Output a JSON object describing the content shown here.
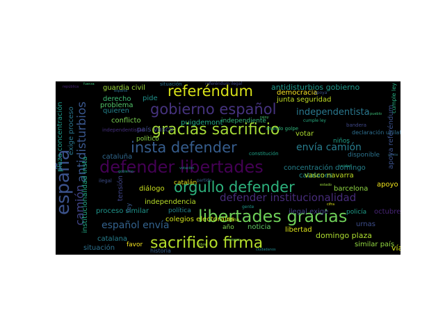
{
  "words": [
    {
      "text": "referéndum",
      "color": "#d8e219"
    },
    {
      "text": "gobierno español",
      "color": "#46337f"
    },
    {
      "text": "gracias sacrificio",
      "color": "#a5db36"
    },
    {
      "text": "insta defender",
      "color": "#365d8d"
    },
    {
      "text": "defender libertades",
      "color": "#440154"
    },
    {
      "text": "orgullo defender",
      "color": "#2db27d"
    },
    {
      "text": "libertades gracias",
      "color": "#6ece58"
    },
    {
      "text": "sacrificio firma",
      "color": "#b5de2b"
    },
    {
      "text": "españa",
      "color": "#3b528b"
    },
    {
      "text": "antidisturbios",
      "color": "#39568c"
    },
    {
      "text": "camión",
      "color": "#414487"
    },
    {
      "text": "defender institucionalidad",
      "color": "#472c7a"
    },
    {
      "text": "envía camión",
      "color": "#287d8e"
    },
    {
      "text": "español envía",
      "color": "#33628d"
    },
    {
      "text": "independentista",
      "color": "#2a788e"
    },
    {
      "text": "antidisturbios gobierno",
      "color": "#1f988b"
    },
    {
      "text": "democracia",
      "color": "#fde725"
    },
    {
      "text": "junta seguridad",
      "color": "#c2df23"
    },
    {
      "text": "guardia civil",
      "color": "#9fda3a"
    },
    {
      "text": "derecho",
      "color": "#3fbc73"
    },
    {
      "text": "quieren",
      "color": "#25848e"
    },
    {
      "text": "conflicto",
      "color": "#7ad151"
    },
    {
      "text": "problema",
      "color": "#52c569"
    },
    {
      "text": "puigdemont",
      "color": "#21a685"
    },
    {
      "text": "pide",
      "color": "#20928c"
    },
    {
      "text": "independiente",
      "color": "#32b67a"
    },
    {
      "text": "país vasco",
      "color": "#3e4a89"
    },
    {
      "text": "cataluña",
      "color": "#31688e"
    },
    {
      "text": "político",
      "color": "#8bd646"
    },
    {
      "text": "votar",
      "color": "#addc30"
    },
    {
      "text": "niños",
      "color": "#1fa088"
    },
    {
      "text": "concentración domingo",
      "color": "#26828e"
    },
    {
      "text": "catalanes",
      "color": "#218e8d"
    },
    {
      "text": "disponible",
      "color": "#2c738e"
    },
    {
      "text": "institucionalidad insta",
      "color": "#22a884"
    },
    {
      "text": "plaza concentración",
      "color": "#1e9b8a"
    },
    {
      "text": "exige proceso",
      "color": "#2a768e"
    },
    {
      "text": "colegios electorales",
      "color": "#d2e21b"
    },
    {
      "text": "catalán",
      "color": "#e5e419"
    },
    {
      "text": "diálogo",
      "color": "#cae11f"
    },
    {
      "text": "vasco navarra",
      "color": "#c0df25"
    },
    {
      "text": "apoyo",
      "color": "#f1e51d"
    },
    {
      "text": "barcelona",
      "color": "#90d743"
    },
    {
      "text": "independencia",
      "color": "#b8de29"
    },
    {
      "text": "proceso similar",
      "color": "#1f958b"
    },
    {
      "text": "política",
      "color": "#24868e"
    },
    {
      "text": "ilegal exige",
      "color": "#423f85"
    },
    {
      "text": "policía",
      "color": "#1e9c89"
    },
    {
      "text": "octubre",
      "color": "#482576"
    },
    {
      "text": "urnas",
      "color": "#3d4d8a"
    },
    {
      "text": "año",
      "color": "#7fd34e"
    },
    {
      "text": "noticia",
      "color": "#5ec962"
    },
    {
      "text": "libertad",
      "color": "#dde318"
    },
    {
      "text": "domingo plaza",
      "color": "#addc30"
    },
    {
      "text": "similar país",
      "color": "#93d741"
    },
    {
      "text": "favor",
      "color": "#f6e620"
    },
    {
      "text": "situación",
      "color": "#2d718e"
    },
    {
      "text": "vía",
      "color": "#d5e21a"
    },
    {
      "text": "apoya referéndum",
      "color": "#3b518b"
    },
    {
      "text": "tensión",
      "color": "#404588"
    },
    {
      "text": "ley",
      "color": "#38598c"
    },
    {
      "text": "española",
      "color": "#22a785"
    },
    {
      "text": "mundo golpe",
      "color": "#2fb47c"
    },
    {
      "text": "bandera",
      "color": "#3f4889"
    },
    {
      "text": "declaración unilateral",
      "color": "#2e6e8e"
    },
    {
      "text": "historia",
      "color": "#355f8d"
    },
    {
      "text": "tema",
      "color": "#b2dd2d"
    },
    {
      "text": "independentistas",
      "color": "#462f7e"
    },
    {
      "text": "constitución",
      "color": "#1fa287"
    },
    {
      "text": "apoya",
      "color": "#3b528b"
    },
    {
      "text": "situación",
      "color": "#2d708e"
    },
    {
      "text": "referéndum ilegal",
      "color": "#404588"
    },
    {
      "text": "catalana",
      "color": "#277f8e"
    },
    {
      "text": "ilegal",
      "color": "#3d4e8a"
    },
    {
      "text": "cumple ley",
      "color": "#26ad81"
    },
    {
      "text": "español",
      "color": "#2e6f8e"
    },
    {
      "text": "partido",
      "color": "#34618d"
    },
    {
      "text": "gente",
      "color": "#1f968b"
    },
    {
      "text": "votación",
      "color": "#21918c"
    },
    {
      "text": "estado",
      "color": "#9bd93c"
    },
    {
      "text": "rajoy",
      "color": "#4ac16d"
    },
    {
      "text": "mossos",
      "color": "#75d054"
    },
    {
      "text": "cifra",
      "color": "#e2e418"
    },
    {
      "text": "ciudadanos",
      "color": "#23898e"
    },
    {
      "text": "república",
      "color": "#482475"
    },
    {
      "text": "pueblo",
      "color": "#3bbb75"
    },
    {
      "text": "unidad",
      "color": "#20a386"
    },
    {
      "text": "libre",
      "color": "#98d83e"
    },
    {
      "text": "gente",
      "color": "#30697e"
    },
    {
      "text": "gobierno",
      "color": "#1f9e89"
    },
    {
      "text": "fuerza",
      "color": "#3aba76"
    }
  ]
}
